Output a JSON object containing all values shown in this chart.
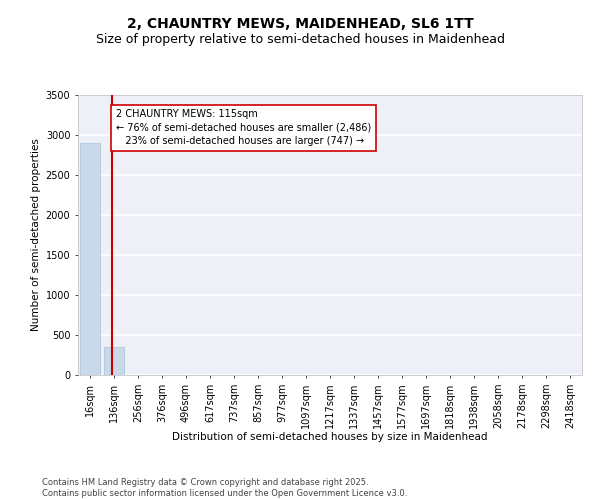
{
  "title_line1": "2, CHAUNTRY MEWS, MAIDENHEAD, SL6 1TT",
  "title_line2": "Size of property relative to semi-detached houses in Maidenhead",
  "xlabel": "Distribution of semi-detached houses by size in Maidenhead",
  "ylabel": "Number of semi-detached properties",
  "categories": [
    "16sqm",
    "136sqm",
    "256sqm",
    "376sqm",
    "496sqm",
    "617sqm",
    "737sqm",
    "857sqm",
    "977sqm",
    "1097sqm",
    "1217sqm",
    "1337sqm",
    "1457sqm",
    "1577sqm",
    "1697sqm",
    "1818sqm",
    "1938sqm",
    "2058sqm",
    "2178sqm",
    "2298sqm",
    "2418sqm"
  ],
  "values": [
    2900,
    350,
    0,
    0,
    0,
    0,
    0,
    0,
    0,
    0,
    0,
    0,
    0,
    0,
    0,
    0,
    0,
    0,
    0,
    0,
    0
  ],
  "bar_color": "#c9d9ea",
  "bar_edge_color": "#a8c4d8",
  "ylim": [
    0,
    3500
  ],
  "yticks": [
    0,
    500,
    1000,
    1500,
    2000,
    2500,
    3000,
    3500
  ],
  "property_line_x": 0.925,
  "annotation_text": "2 CHAUNTRY MEWS: 115sqm\n← 76% of semi-detached houses are smaller (2,486)\n   23% of semi-detached houses are larger (747) →",
  "annotation_box_color": "#ffffff",
  "annotation_box_edge": "#cc0000",
  "red_line_color": "#cc0000",
  "background_color": "#edf1f7",
  "grid_color": "#ffffff",
  "footer_text": "Contains HM Land Registry data © Crown copyright and database right 2025.\nContains public sector information licensed under the Open Government Licence v3.0.",
  "title_fontsize": 10,
  "subtitle_fontsize": 9,
  "axis_label_fontsize": 7.5,
  "tick_fontsize": 7,
  "annotation_fontsize": 7,
  "footer_fontsize": 6
}
